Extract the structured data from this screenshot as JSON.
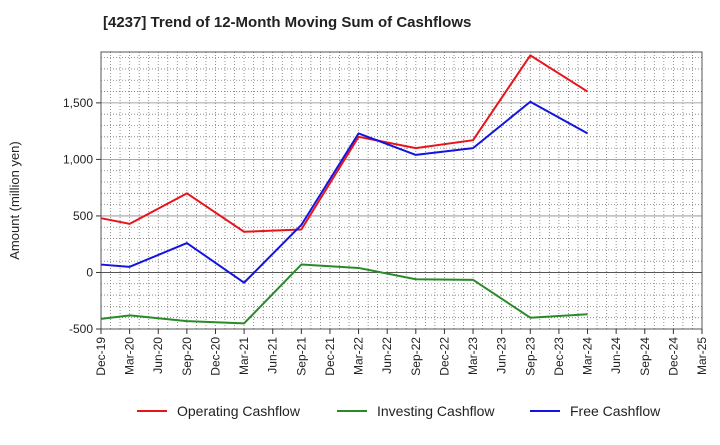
{
  "chart_data": {
    "type": "line",
    "title": "[4237]  Trend of 12-Month Moving Sum of Cashflows",
    "xlabel": "",
    "ylabel": "Amount (million yen)",
    "ylim": [
      -500,
      1950
    ],
    "y_ticks": [
      -500,
      0,
      500,
      1000,
      1500
    ],
    "y_tick_labels": [
      "-500",
      "0",
      "500",
      "1,000",
      "1,500"
    ],
    "grid": true,
    "legend_position": "bottom",
    "x": [
      "Dec-19",
      "Mar-20",
      "Jun-20",
      "Sep-20",
      "Dec-20",
      "Mar-21",
      "Jun-21",
      "Sep-21",
      "Dec-21",
      "Mar-22",
      "Jun-22",
      "Sep-22",
      "Dec-22",
      "Mar-23",
      "Jun-23",
      "Sep-23",
      "Dec-23",
      "Mar-24",
      "Jun-24",
      "Sep-24",
      "Dec-24",
      "Mar-25"
    ],
    "series": [
      {
        "name": "Operating Cashflow",
        "color": "#e8141b",
        "values": [
          480,
          430,
          null,
          700,
          null,
          360,
          null,
          380,
          null,
          1200,
          null,
          1100,
          null,
          1170,
          null,
          1920,
          null,
          1600,
          null,
          null,
          null,
          null
        ]
      },
      {
        "name": "Investing Cashflow",
        "color": "#2a8a2a",
        "values": [
          -410,
          -380,
          null,
          -430,
          null,
          -450,
          null,
          70,
          null,
          40,
          null,
          -60,
          null,
          -65,
          null,
          -400,
          null,
          -370,
          null,
          null,
          null,
          null
        ]
      },
      {
        "name": "Free Cashflow",
        "color": "#1414e0",
        "values": [
          70,
          50,
          null,
          260,
          null,
          -90,
          null,
          420,
          null,
          1230,
          null,
          1040,
          null,
          1100,
          null,
          1510,
          null,
          1230,
          null,
          null,
          null,
          null
        ]
      }
    ]
  }
}
